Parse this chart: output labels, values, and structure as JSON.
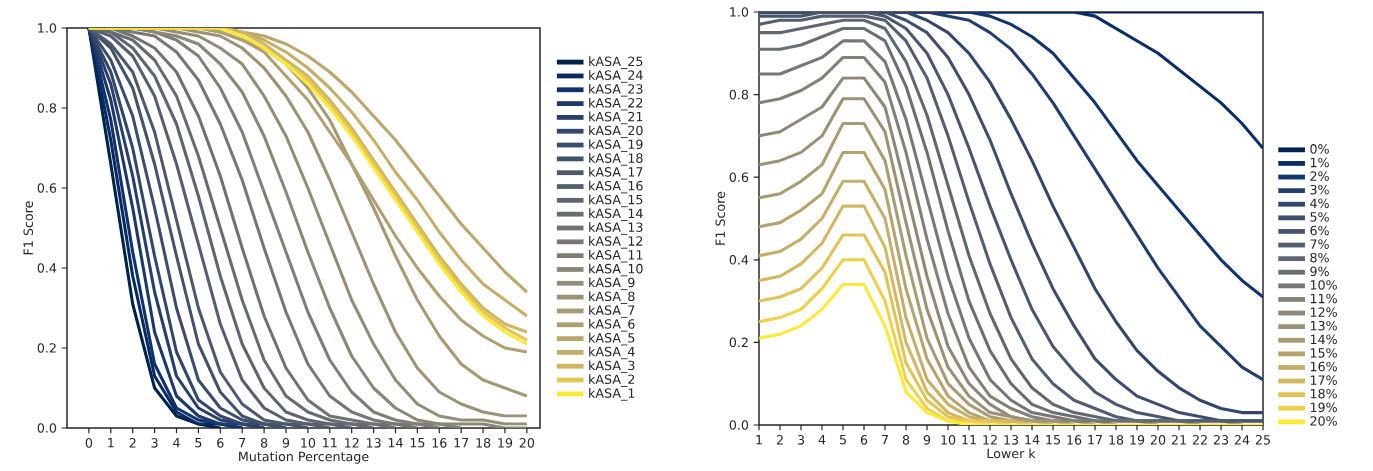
{
  "chart_data": [
    {
      "type": "line",
      "xlabel": "Mutation Percentage",
      "ylabel": "F1 Score",
      "legend": "right",
      "x": [
        0,
        1,
        2,
        3,
        4,
        5,
        6,
        7,
        8,
        9,
        10,
        11,
        12,
        13,
        14,
        15,
        16,
        17,
        18,
        19,
        20
      ],
      "xlim": [
        -1,
        20.6
      ],
      "ylim": [
        0,
        1
      ],
      "xticks": [
        0,
        1,
        2,
        3,
        4,
        5,
        6,
        7,
        8,
        9,
        10,
        11,
        12,
        13,
        14,
        15,
        16,
        17,
        18,
        19,
        20
      ],
      "yticks": [
        {
          "value": 0,
          "label": "0.0"
        },
        {
          "value": 0.2,
          "label": "0.2"
        },
        {
          "value": 0.4,
          "label": "0.4"
        },
        {
          "value": 0.6,
          "label": "0.6"
        },
        {
          "value": 0.8,
          "label": "0.8"
        },
        {
          "value": 1,
          "label": "1.0"
        }
      ],
      "series": [
        {
          "name": "kASA_25",
          "color": "#00224e",
          "values": [
            1,
            0.66,
            0.31,
            0.1,
            0.03,
            0.01,
            0,
            null,
            null,
            null,
            null,
            null,
            null,
            null,
            null,
            null,
            null,
            null,
            null,
            null,
            null
          ]
        },
        {
          "name": "kASA_24",
          "color": "#072a62",
          "values": [
            1,
            0.72,
            0.38,
            0.13,
            0.04,
            0.01,
            0.01,
            0,
            null,
            null,
            null,
            null,
            null,
            null,
            null,
            null,
            null,
            null,
            null,
            null,
            null
          ]
        },
        {
          "name": "kASA_23",
          "color": "#0f326d",
          "values": [
            1,
            0.77,
            0.44,
            0.16,
            0.05,
            0.02,
            0.01,
            0,
            null,
            null,
            null,
            null,
            null,
            null,
            null,
            null,
            null,
            null,
            null,
            null,
            null
          ]
        },
        {
          "name": "kASA_22",
          "color": "#1d396c",
          "values": [
            1,
            0.82,
            0.55,
            0.24,
            0.08,
            0.03,
            0.01,
            0.01,
            0,
            null,
            null,
            null,
            null,
            null,
            null,
            null,
            null,
            null,
            null,
            null,
            null
          ]
        },
        {
          "name": "kASA_21",
          "color": "#293f6b",
          "values": [
            1,
            0.86,
            0.63,
            0.34,
            0.13,
            0.05,
            0.02,
            0.01,
            0,
            null,
            null,
            null,
            null,
            null,
            null,
            null,
            null,
            null,
            null,
            null,
            null
          ]
        },
        {
          "name": "kASA_20",
          "color": "#33466c",
          "values": [
            1,
            0.89,
            0.7,
            0.43,
            0.19,
            0.07,
            0.03,
            0.01,
            0.01,
            0,
            null,
            null,
            null,
            null,
            null,
            null,
            null,
            null,
            null,
            null,
            null
          ]
        },
        {
          "name": "kASA_19",
          "color": "#3c4c6c",
          "values": [
            1,
            0.92,
            0.78,
            0.55,
            0.3,
            0.12,
            0.05,
            0.02,
            0.01,
            0,
            null,
            null,
            null,
            null,
            null,
            null,
            null,
            null,
            null,
            null,
            null
          ]
        },
        {
          "name": "kASA_18",
          "color": "#45526c",
          "values": [
            1,
            0.95,
            0.85,
            0.66,
            0.43,
            0.21,
            0.09,
            0.03,
            0.01,
            0.01,
            0,
            null,
            null,
            null,
            null,
            null,
            null,
            null,
            null,
            null,
            null
          ]
        },
        {
          "name": "kASA_17",
          "color": "#4e586d",
          "values": [
            1,
            0.96,
            0.89,
            0.74,
            0.52,
            0.3,
            0.14,
            0.06,
            0.02,
            0.01,
            0.01,
            0,
            null,
            null,
            null,
            null,
            null,
            null,
            null,
            null,
            null
          ]
        },
        {
          "name": "kASA_16",
          "color": "#565e6f",
          "values": [
            1,
            0.98,
            0.93,
            0.83,
            0.66,
            0.46,
            0.26,
            0.12,
            0.05,
            0.02,
            0.01,
            0.01,
            0,
            null,
            null,
            null,
            null,
            null,
            null,
            null,
            null
          ]
        },
        {
          "name": "kASA_15",
          "color": "#5f6570",
          "values": [
            1,
            0.99,
            0.95,
            0.88,
            0.76,
            0.58,
            0.38,
            0.21,
            0.1,
            0.04,
            0.02,
            0.01,
            0.01,
            0,
            null,
            null,
            null,
            null,
            null,
            null,
            null
          ]
        },
        {
          "name": "kASA_14",
          "color": "#676b72",
          "values": [
            1,
            0.99,
            0.97,
            0.92,
            0.83,
            0.68,
            0.5,
            0.32,
            0.17,
            0.08,
            0.04,
            0.02,
            0.01,
            0.01,
            0,
            null,
            null,
            null,
            null,
            null,
            null
          ]
        },
        {
          "name": "kASA_13",
          "color": "#6f7174",
          "values": [
            1,
            1,
            0.98,
            0.95,
            0.89,
            0.78,
            0.63,
            0.45,
            0.28,
            0.15,
            0.07,
            0.03,
            0.02,
            0.01,
            0.01,
            0,
            null,
            null,
            null,
            null,
            null
          ]
        },
        {
          "name": "kASA_12",
          "color": "#787775",
          "values": [
            1,
            1,
            0.99,
            0.98,
            0.94,
            0.87,
            0.76,
            0.62,
            0.45,
            0.29,
            0.16,
            0.08,
            0.04,
            0.02,
            0.01,
            0.01,
            0,
            null,
            null,
            null,
            null
          ]
        },
        {
          "name": "kASA_11",
          "color": "#817e76",
          "values": [
            1,
            1,
            1,
            0.99,
            0.97,
            0.93,
            0.85,
            0.74,
            0.59,
            0.44,
            0.29,
            0.17,
            0.09,
            0.04,
            0.02,
            0.01,
            0.01,
            0,
            null,
            null,
            null
          ]
        },
        {
          "name": "kASA_10",
          "color": "#8a8678",
          "values": [
            1,
            1,
            1,
            0.99,
            0.98,
            0.96,
            0.91,
            0.84,
            0.73,
            0.59,
            0.44,
            0.3,
            0.18,
            0.1,
            0.05,
            0.02,
            0.01,
            0.01,
            0.01,
            0,
            0
          ]
        },
        {
          "name": "kASA_9",
          "color": "#938d77",
          "values": [
            1,
            1,
            1,
            1,
            0.99,
            0.98,
            0.95,
            0.91,
            0.83,
            0.73,
            0.6,
            0.46,
            0.32,
            0.21,
            0.12,
            0.06,
            0.03,
            0.02,
            0.02,
            0.01,
            0.01
          ]
        },
        {
          "name": "kASA_8",
          "color": "#9d9276",
          "values": [
            1,
            1,
            1,
            1,
            1,
            0.99,
            0.98,
            0.95,
            0.9,
            0.83,
            0.74,
            0.62,
            0.49,
            0.36,
            0.24,
            0.15,
            0.09,
            0.06,
            0.04,
            0.03,
            0.03
          ]
        },
        {
          "name": "kASA_7",
          "color": "#a69a74",
          "values": [
            1,
            1,
            1,
            1,
            1,
            1,
            0.99,
            0.97,
            0.95,
            0.91,
            0.85,
            0.77,
            0.66,
            0.55,
            0.43,
            0.32,
            0.23,
            0.16,
            0.12,
            0.1,
            0.08
          ]
        },
        {
          "name": "kASA_6",
          "color": "#b0a071",
          "values": [
            1,
            1,
            1,
            1,
            1,
            1,
            0.99,
            0.97,
            0.94,
            0.88,
            0.82,
            0.74,
            0.66,
            0.57,
            0.48,
            0.4,
            0.33,
            0.27,
            0.23,
            0.2,
            0.19
          ]
        },
        {
          "name": "kASA_5",
          "color": "#baa76d",
          "values": [
            1,
            1,
            1,
            1,
            1,
            1,
            1,
            0.99,
            0.98,
            0.96,
            0.93,
            0.89,
            0.84,
            0.78,
            0.72,
            0.65,
            0.58,
            0.51,
            0.45,
            0.39,
            0.34
          ]
        },
        {
          "name": "kASA_4",
          "color": "#c4ae69",
          "values": [
            1,
            1,
            1,
            1,
            1,
            1,
            1,
            0.99,
            0.97,
            0.94,
            0.9,
            0.85,
            0.79,
            0.72,
            0.64,
            0.57,
            0.49,
            0.42,
            0.36,
            0.32,
            0.28
          ]
        },
        {
          "name": "kASA_3",
          "color": "#d0b663",
          "values": [
            1,
            1,
            1,
            1,
            1,
            1,
            1,
            0.99,
            0.96,
            0.92,
            0.88,
            0.82,
            0.75,
            0.67,
            0.59,
            0.51,
            0.43,
            0.36,
            0.3,
            0.26,
            0.24
          ]
        },
        {
          "name": "kASA_2",
          "color": "#e3c755",
          "values": [
            1,
            1,
            1,
            1,
            1,
            1,
            1,
            0.98,
            0.95,
            0.91,
            0.87,
            0.81,
            0.74,
            0.66,
            0.58,
            0.5,
            0.42,
            0.35,
            0.29,
            0.25,
            0.22
          ]
        },
        {
          "name": "kASA_1",
          "color": "#fee838",
          "values": [
            1,
            1,
            1,
            1,
            1,
            1,
            1,
            0.98,
            0.95,
            0.91,
            0.86,
            0.8,
            0.73,
            0.65,
            0.57,
            0.49,
            0.41,
            0.34,
            0.28,
            0.24,
            0.21
          ]
        }
      ]
    },
    {
      "type": "line",
      "xlabel": "Lower k",
      "ylabel": "F1 Score",
      "legend": "bottom right",
      "x": [
        1,
        2,
        3,
        4,
        5,
        6,
        7,
        8,
        9,
        10,
        11,
        12,
        13,
        14,
        15,
        16,
        17,
        18,
        19,
        20,
        21,
        22,
        23,
        24,
        25
      ],
      "xlim": [
        1,
        25
      ],
      "ylim": [
        0,
        1
      ],
      "xticks": [
        1,
        2,
        3,
        4,
        5,
        6,
        7,
        8,
        9,
        10,
        11,
        12,
        13,
        14,
        15,
        16,
        17,
        18,
        19,
        20,
        21,
        22,
        23,
        24,
        25
      ],
      "yticks": [
        {
          "value": 0,
          "label": "0.0"
        },
        {
          "value": 0.2,
          "label": "0.2"
        },
        {
          "value": 0.4,
          "label": "0.4"
        },
        {
          "value": 0.6,
          "label": "0.6"
        },
        {
          "value": 0.8,
          "label": "0.8"
        },
        {
          "value": 1,
          "label": "1.0"
        }
      ],
      "series": [
        {
          "name": "0%",
          "color": "#00224e",
          "values": [
            1,
            1,
            1,
            1,
            1,
            1,
            1,
            1,
            1,
            1,
            1,
            1,
            1,
            1,
            1,
            1,
            1,
            1,
            1,
            1,
            1,
            1,
            1,
            1,
            1
          ]
        },
        {
          "name": "1%",
          "color": "#0a2d66",
          "values": [
            1,
            1,
            1,
            1,
            1,
            1,
            1,
            1,
            1,
            1,
            1,
            1,
            1,
            1,
            1,
            1,
            0.99,
            0.96,
            0.93,
            0.9,
            0.86,
            0.82,
            0.78,
            0.73,
            0.67
          ]
        },
        {
          "name": "2%",
          "color": "#11366d",
          "values": [
            1,
            1,
            1,
            1,
            1,
            1,
            1,
            1,
            1,
            1,
            1,
            0.99,
            0.97,
            0.94,
            0.9,
            0.84,
            0.78,
            0.71,
            0.64,
            0.58,
            0.52,
            0.46,
            0.4,
            0.35,
            0.31
          ]
        },
        {
          "name": "3%",
          "color": "#233e6c",
          "values": [
            1,
            1,
            1,
            1,
            1,
            1,
            1,
            1,
            1,
            0.99,
            0.98,
            0.95,
            0.91,
            0.85,
            0.78,
            0.7,
            0.62,
            0.54,
            0.46,
            0.38,
            0.31,
            0.24,
            0.19,
            0.14,
            0.11
          ]
        },
        {
          "name": "4%",
          "color": "#33466c",
          "values": [
            1,
            1,
            1,
            1,
            1,
            1,
            1,
            1,
            0.98,
            0.95,
            0.9,
            0.83,
            0.74,
            0.64,
            0.53,
            0.43,
            0.33,
            0.25,
            0.18,
            0.13,
            0.09,
            0.06,
            0.04,
            0.03,
            0.03
          ]
        },
        {
          "name": "5%",
          "color": "#3f4e6c",
          "values": [
            1,
            1,
            1,
            1,
            1,
            1,
            1,
            0.98,
            0.95,
            0.89,
            0.8,
            0.69,
            0.56,
            0.44,
            0.33,
            0.24,
            0.16,
            0.11,
            0.07,
            0.05,
            0.03,
            0.02,
            0.01,
            0.01,
            0.01
          ]
        },
        {
          "name": "6%",
          "color": "#4a566d",
          "values": [
            0.99,
            0.99,
            0.99,
            1,
            1,
            1,
            0.99,
            0.96,
            0.9,
            0.8,
            0.67,
            0.53,
            0.4,
            0.28,
            0.19,
            0.13,
            0.08,
            0.05,
            0.03,
            0.02,
            0.01,
            0.01,
            0.01,
            0.01,
            0.01
          ]
        },
        {
          "name": "7%",
          "color": "#555e6f",
          "values": [
            0.97,
            0.98,
            0.98,
            0.99,
            0.99,
            0.99,
            0.98,
            0.93,
            0.84,
            0.7,
            0.54,
            0.39,
            0.26,
            0.16,
            0.1,
            0.06,
            0.04,
            0.02,
            0.01,
            0.01,
            0.01,
            0.01,
            0.01,
            0,
            null
          ]
        },
        {
          "name": "8%",
          "color": "#606771",
          "values": [
            0.95,
            0.95,
            0.96,
            0.97,
            0.98,
            0.98,
            0.96,
            0.88,
            0.75,
            0.58,
            0.41,
            0.27,
            0.16,
            0.09,
            0.05,
            0.03,
            0.02,
            0.01,
            0.01,
            0.01,
            0.01,
            0,
            null,
            null,
            null
          ]
        },
        {
          "name": "9%",
          "color": "#6b6f73",
          "values": [
            0.91,
            0.91,
            0.92,
            0.94,
            0.96,
            0.96,
            0.93,
            0.82,
            0.66,
            0.47,
            0.3,
            0.18,
            0.1,
            0.05,
            0.03,
            0.02,
            0.01,
            0.01,
            0.01,
            0,
            null,
            null,
            null,
            null,
            null
          ]
        },
        {
          "name": "10%",
          "color": "#777775",
          "values": [
            0.85,
            0.85,
            0.87,
            0.89,
            0.93,
            0.93,
            0.88,
            0.74,
            0.55,
            0.36,
            0.21,
            0.11,
            0.06,
            0.03,
            0.02,
            0.01,
            0.01,
            0,
            null,
            null,
            null,
            null,
            null,
            null,
            null
          ]
        },
        {
          "name": "11%",
          "color": "#838076",
          "values": [
            0.78,
            0.79,
            0.81,
            0.84,
            0.89,
            0.89,
            0.83,
            0.66,
            0.45,
            0.27,
            0.14,
            0.07,
            0.04,
            0.02,
            0.01,
            0.01,
            0,
            null,
            null,
            null,
            null,
            null,
            null,
            null,
            null
          ]
        },
        {
          "name": "12%",
          "color": "#8f8877",
          "values": [
            0.7,
            0.71,
            0.74,
            0.77,
            0.84,
            0.84,
            0.77,
            0.57,
            0.36,
            0.19,
            0.1,
            0.05,
            0.02,
            0.01,
            0.01,
            0,
            null,
            null,
            null,
            null,
            null,
            null,
            null,
            null,
            null
          ]
        },
        {
          "name": "13%",
          "color": "#9c9176",
          "values": [
            0.63,
            0.64,
            0.66,
            0.7,
            0.79,
            0.79,
            0.71,
            0.49,
            0.28,
            0.14,
            0.07,
            0.03,
            0.02,
            0.01,
            0.01,
            0,
            null,
            null,
            null,
            null,
            null,
            null,
            null,
            null,
            null
          ]
        },
        {
          "name": "14%",
          "color": "#a99b73",
          "values": [
            0.55,
            0.56,
            0.59,
            0.63,
            0.73,
            0.73,
            0.64,
            0.41,
            0.21,
            0.1,
            0.05,
            0.02,
            0.01,
            0.01,
            0,
            null,
            null,
            null,
            null,
            null,
            null,
            null,
            null,
            null,
            null
          ]
        },
        {
          "name": "15%",
          "color": "#b6a46f",
          "values": [
            0.48,
            0.49,
            0.52,
            0.56,
            0.66,
            0.66,
            0.57,
            0.33,
            0.16,
            0.07,
            0.03,
            0.01,
            0.01,
            0,
            null,
            null,
            null,
            null,
            null,
            null,
            null,
            null,
            null,
            null,
            null
          ]
        },
        {
          "name": "16%",
          "color": "#c4ae69",
          "values": [
            0.41,
            0.42,
            0.45,
            0.5,
            0.59,
            0.59,
            0.5,
            0.26,
            0.11,
            0.05,
            0.02,
            0.01,
            0.01,
            0,
            null,
            null,
            null,
            null,
            null,
            null,
            null,
            null,
            null,
            null,
            null
          ]
        },
        {
          "name": "17%",
          "color": "#d2b862",
          "values": [
            0.35,
            0.36,
            0.39,
            0.44,
            0.53,
            0.53,
            0.43,
            0.2,
            0.08,
            0.03,
            0.01,
            0.01,
            0.01,
            0,
            null,
            null,
            null,
            null,
            null,
            null,
            null,
            null,
            null,
            null,
            null
          ]
        },
        {
          "name": "18%",
          "color": "#e0c358",
          "values": [
            0.3,
            0.31,
            0.33,
            0.38,
            0.46,
            0.46,
            0.37,
            0.15,
            0.06,
            0.02,
            0.01,
            0.01,
            0,
            null,
            null,
            null,
            null,
            null,
            null,
            null,
            null,
            null,
            null,
            null,
            null
          ]
        },
        {
          "name": "19%",
          "color": "#efd04a",
          "values": [
            0.25,
            0.26,
            0.28,
            0.33,
            0.4,
            0.4,
            0.3,
            0.11,
            0.04,
            0.01,
            0.01,
            0,
            null,
            null,
            null,
            null,
            null,
            null,
            null,
            null,
            null,
            null,
            null,
            null,
            null
          ]
        },
        {
          "name": "20%",
          "color": "#fee838",
          "values": [
            0.21,
            0.22,
            0.24,
            0.28,
            0.34,
            0.34,
            0.24,
            0.08,
            0.03,
            0.01,
            0,
            0,
            0,
            0,
            0,
            0,
            0,
            0,
            0,
            0,
            0,
            0,
            0,
            0,
            0
          ]
        }
      ]
    }
  ]
}
